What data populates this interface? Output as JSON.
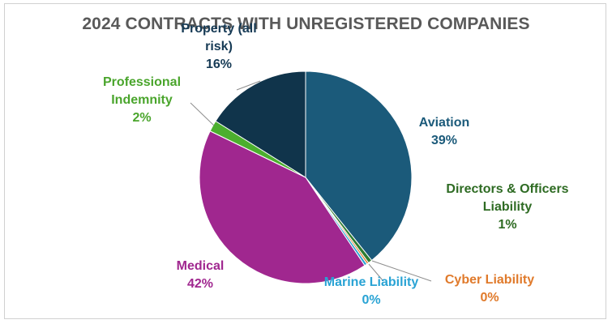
{
  "chart_data": {
    "type": "pie",
    "title": "2024 CONTRACTS WITH UNREGISTERED COMPANIES",
    "slices": [
      {
        "name": "Aviation",
        "label_lines": [
          "Aviation"
        ],
        "percent_label": "39%",
        "value": 39.3,
        "color": "#1b5a7a",
        "label_color": "#1b5a7a"
      },
      {
        "name": "Directors & Officers Liability",
        "label_lines": [
          "Directors & Officers",
          "Liability"
        ],
        "percent_label": "1%",
        "value": 0.6,
        "color": "#2e7d32",
        "label_color": "#2e6b23"
      },
      {
        "name": "Cyber Liability",
        "label_lines": [
          "Cyber Liability"
        ],
        "percent_label": "0%",
        "value": 0.3,
        "color": "#e07a2b",
        "label_color": "#e07a2b"
      },
      {
        "name": "Marine Liability",
        "label_lines": [
          "Marine Liability"
        ],
        "percent_label": "0%",
        "value": 0.4,
        "color": "#29a3d4",
        "label_color": "#29a3d4"
      },
      {
        "name": "Medical",
        "label_lines": [
          "Medical"
        ],
        "percent_label": "42%",
        "value": 41.6,
        "color": "#a0278f",
        "label_color": "#a0278f"
      },
      {
        "name": "Professional Indemnity",
        "label_lines": [
          "Professional",
          "Indemnity"
        ],
        "percent_label": "2%",
        "value": 1.7,
        "color": "#4caf2e",
        "label_color": "#4aa52c"
      },
      {
        "name": "Property (all risk)",
        "label_lines": [
          "Property (all",
          "risk)"
        ],
        "percent_label": "16%",
        "value": 16.1,
        "color": "#10344b",
        "label_color": "#163a55"
      }
    ]
  }
}
